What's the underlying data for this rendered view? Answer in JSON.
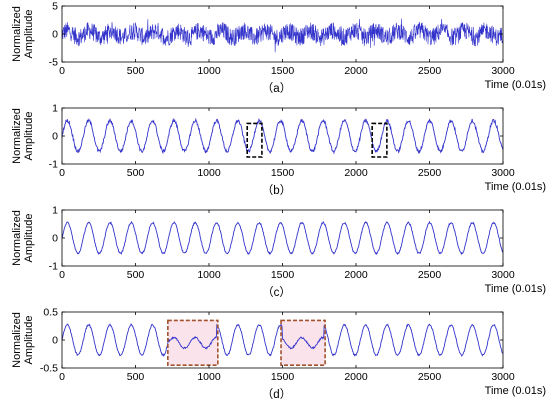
{
  "chart_data": [
    {
      "type": "line",
      "panel_label": "（a）",
      "ylabel": "Normalized\nAmplitude",
      "xlabel": "Time (0.01s)",
      "xlim": [
        0,
        3000
      ],
      "ylim": [
        -5,
        5
      ],
      "x_ticks": [
        "0",
        "500",
        "1000",
        "1500",
        "2000",
        "2500",
        "3000"
      ],
      "y_ticks": [
        "5",
        "0",
        "-5"
      ],
      "y_tick_values": [
        5,
        0,
        -5
      ],
      "series": [
        {
          "color": "#3333cc",
          "kind": "noise",
          "amplitude": 1.6,
          "base_period": 150,
          "base_amplitude": 0.6
        }
      ],
      "highlights": []
    },
    {
      "type": "line",
      "panel_label": "（b）",
      "ylabel": "Normalized\nAmplitude",
      "xlabel": "Time (0.01s)",
      "xlim": [
        0,
        3000
      ],
      "ylim": [
        -1,
        1
      ],
      "x_ticks": [
        "0",
        "500",
        "1000",
        "1500",
        "2000",
        "2500",
        "3000"
      ],
      "y_ticks": [
        "1",
        "0",
        "-1"
      ],
      "y_tick_values": [
        1,
        0,
        -1
      ],
      "series": [
        {
          "color": "#3333cc",
          "kind": "sine",
          "amplitude": 0.55,
          "period": 145,
          "noise": 0.06
        }
      ],
      "highlights": [
        {
          "x": [
            1260,
            1360
          ],
          "y": [
            -0.75,
            0.45
          ],
          "stroke": "#000000",
          "fill": "none"
        },
        {
          "x": [
            2110,
            2210
          ],
          "y": [
            -0.75,
            0.45
          ],
          "stroke": "#000000",
          "fill": "none"
        }
      ]
    },
    {
      "type": "line",
      "panel_label": "（c）",
      "ylabel": "Normalized\nAmplitude",
      "xlabel": "Time (0.01s)",
      "xlim": [
        0,
        3000
      ],
      "ylim": [
        -1,
        1
      ],
      "x_ticks": [
        "0",
        "500",
        "1000",
        "1500",
        "2000",
        "2500",
        "3000"
      ],
      "y_ticks": [
        "1",
        "0",
        "-1"
      ],
      "y_tick_values": [
        1,
        0,
        -1
      ],
      "series": [
        {
          "color": "#3333cc",
          "kind": "sine",
          "amplitude": 0.55,
          "period": 145,
          "noise": 0.03
        }
      ],
      "highlights": []
    },
    {
      "type": "line",
      "panel_label": "（d）",
      "ylabel": "Normalized\nAmplitude",
      "xlabel": "Time (0.01s)",
      "xlim": [
        0,
        3000
      ],
      "ylim": [
        -0.5,
        0.5
      ],
      "x_ticks": [
        "0",
        "500",
        "1000",
        "1500",
        "2000",
        "2500",
        "3000"
      ],
      "y_ticks": [
        "0.5",
        "0",
        "-0.5"
      ],
      "y_tick_values": [
        0.5,
        0,
        -0.5
      ],
      "series": [
        {
          "color": "#3333cc",
          "kind": "sine",
          "amplitude": 0.27,
          "period": 145,
          "noise": 0.015,
          "quiet_ranges": [
            [
              730,
              1050
            ],
            [
              1500,
              1780
            ]
          ]
        }
      ],
      "highlights": [
        {
          "x": [
            720,
            1060
          ],
          "y": [
            -0.45,
            0.35
          ],
          "stroke": "#a0522d",
          "fill": "#fbe3ec"
        },
        {
          "x": [
            1490,
            1790
          ],
          "y": [
            -0.45,
            0.35
          ],
          "stroke": "#a0522d",
          "fill": "#fbe3ec"
        }
      ]
    }
  ]
}
